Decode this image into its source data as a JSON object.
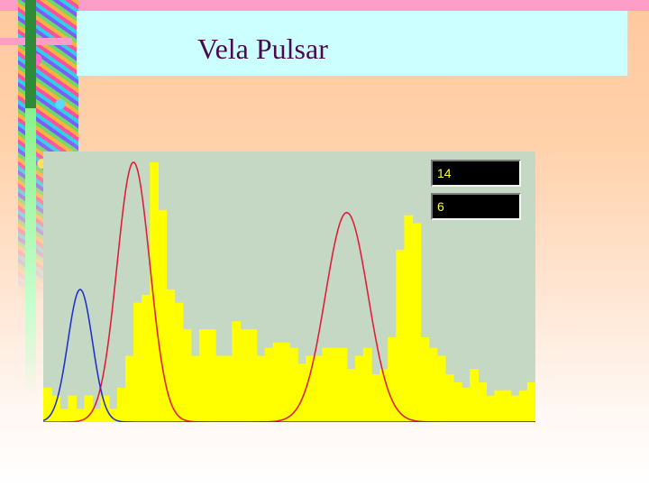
{
  "slide": {
    "title": "Vela Pulsar"
  },
  "readouts": {
    "value_1": "14",
    "value_2": "6"
  },
  "colors": {
    "background_top": "#ffc89e",
    "title_box": "#ccffff",
    "title_text": "#4b0a4f",
    "plot_background": "#c4d8c4",
    "histogram": "#ffff00",
    "red_curve": "#e0203a",
    "blue_curve": "#2233cc",
    "readout_text": "#ffff40"
  },
  "chart_data": {
    "type": "bar",
    "title": "",
    "xlabel": "",
    "ylabel": "",
    "xlim": [
      0,
      60
    ],
    "ylim": [
      0,
      100
    ],
    "grid": false,
    "values": [
      13,
      10,
      5,
      10,
      5,
      10,
      5,
      10,
      5,
      13,
      25,
      45,
      48,
      98,
      80,
      50,
      45,
      35,
      25,
      35,
      35,
      25,
      25,
      38,
      35,
      35,
      25,
      28,
      30,
      30,
      28,
      22,
      25,
      25,
      28,
      28,
      28,
      20,
      25,
      28,
      18,
      20,
      32,
      65,
      78,
      75,
      32,
      28,
      25,
      18,
      15,
      13,
      20,
      15,
      10,
      12,
      12,
      10,
      12,
      15
    ],
    "series": [
      {
        "name": "",
        "type": "line",
        "color": "#e0203a",
        "gaussians": [
          {
            "amp": 98,
            "center": 11,
            "sigma": 2.0
          },
          {
            "amp": 79,
            "center": 37,
            "sigma": 2.6
          }
        ]
      },
      {
        "name": "",
        "type": "line",
        "color": "#2233cc",
        "gaussians": [
          {
            "amp": 50,
            "center": 4.5,
            "sigma": 1.5
          }
        ]
      }
    ]
  }
}
